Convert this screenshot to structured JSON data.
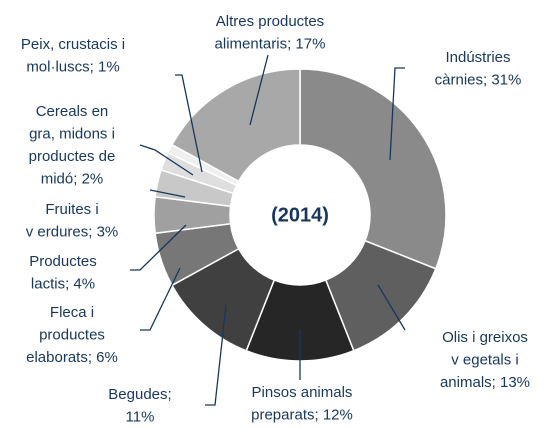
{
  "chart_data": {
    "type": "donut",
    "subtitle": "(2014)",
    "labels": [
      [
        "Indústries",
        "càrnies; 31%"
      ],
      [
        "Olis i greixos",
        "v egetals i",
        "animals; 13%"
      ],
      [
        "Pinsos animals",
        "preparats; 12%"
      ],
      [
        "Begudes;",
        "11%"
      ],
      [
        "Fleca i",
        "productes",
        "elaborats; 6%"
      ],
      [
        "Productes",
        "lactis; 4%"
      ],
      [
        "Fruites i",
        "v erdures; 3%"
      ],
      [
        "Cereals en",
        "gra, midons i",
        "productes de",
        "midó; 2%"
      ],
      [
        "Peix, crustacis i",
        "mol·luscs; 1%"
      ],
      [
        "Altres productes",
        "alimentaris; 17%"
      ]
    ],
    "values": [
      31,
      13,
      12,
      11,
      6,
      4,
      3,
      2,
      1,
      17
    ],
    "colors": [
      "#8a8a8a",
      "#5f5f5f",
      "#262626",
      "#404040",
      "#777777",
      "#a0a0a0",
      "#c8c8c8",
      "#dedede",
      "#efefef",
      "#a8a8a8"
    ]
  }
}
